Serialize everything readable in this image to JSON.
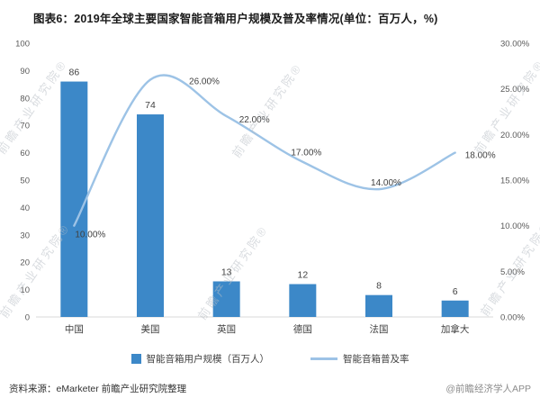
{
  "title": "图表6：2019年全球主要国家智能音箱用户规模及普及率情况(单位：百万人，%)",
  "chart_data": {
    "type": "bar+line",
    "categories": [
      "中国",
      "美国",
      "英国",
      "德国",
      "法国",
      "加拿大"
    ],
    "series": [
      {
        "name": "智能音箱用户规模（百万人）",
        "type": "bar",
        "axis": "left",
        "color": "#3C88C8",
        "values": [
          86,
          74,
          13,
          12,
          8,
          6
        ]
      },
      {
        "name": "智能音箱普及率",
        "type": "line",
        "axis": "right",
        "color": "#9DC3E6",
        "values": [
          10,
          26,
          22,
          17,
          14,
          18
        ],
        "labels": [
          "10.00%",
          "26.00%",
          "22.00%",
          "17.00%",
          "14.00%",
          "18.00%"
        ]
      }
    ],
    "left_axis": {
      "min": 0,
      "max": 100,
      "step": 10,
      "ticks": [
        "100",
        "90",
        "80",
        "70",
        "60",
        "50",
        "40",
        "30",
        "20",
        "10",
        "0"
      ]
    },
    "right_axis": {
      "min": 0,
      "max": 30,
      "step": 5,
      "ticks": [
        "30.00%",
        "25.00%",
        "20.00%",
        "15.00%",
        "10.00%",
        "5.00%",
        "0.00%"
      ]
    },
    "grid": false,
    "legend_position": "bottom"
  },
  "footer": {
    "source": "资料来源：eMarketer 前瞻产业研究院整理",
    "brand": "@前瞻经济学人APP"
  },
  "watermark": {
    "text": "前瞻产业研究院",
    "reg": "®"
  }
}
